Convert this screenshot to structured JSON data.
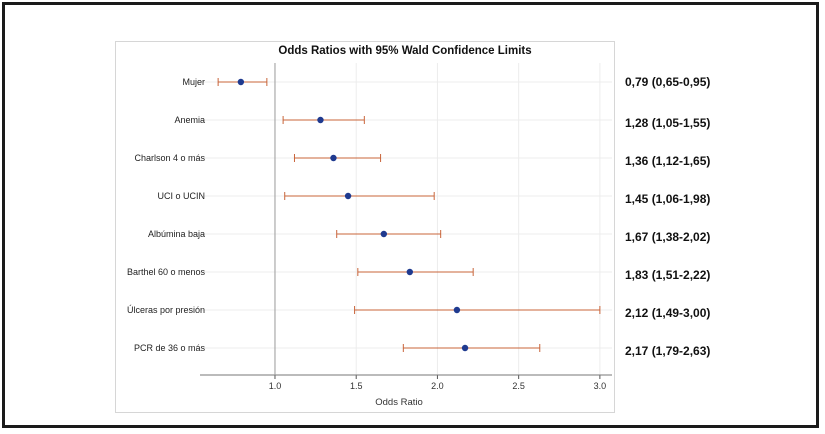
{
  "chart_data": {
    "type": "scatter",
    "title": "Odds Ratios with 95% Wald Confidence Limits",
    "xlabel": "Odds Ratio",
    "ylabel": "",
    "xlim": [
      0.6,
      3.05
    ],
    "xticks": [
      "1.0",
      "1.5",
      "2.0",
      "2.5",
      "3.0"
    ],
    "reference_line": 1.0,
    "grid": true,
    "colors": {
      "point": "#1f3a8f",
      "errorbar": "#c8643a",
      "grid": "#ececec",
      "reference": "#9a9a9a"
    },
    "rows": [
      {
        "label": "Mujer",
        "or": 0.79,
        "lower": 0.65,
        "upper": 0.95,
        "ci_text": "0,79 (0,65-0,95)"
      },
      {
        "label": "Anemia",
        "or": 1.28,
        "lower": 1.05,
        "upper": 1.55,
        "ci_text": "1,28 (1,05-1,55)"
      },
      {
        "label": "Charlson 4 o más",
        "or": 1.36,
        "lower": 1.12,
        "upper": 1.65,
        "ci_text": "1,36 (1,12-1,65)"
      },
      {
        "label": "UCI o UCIN",
        "or": 1.45,
        "lower": 1.06,
        "upper": 1.98,
        "ci_text": "1,45 (1,06-1,98)"
      },
      {
        "label": "Albúmina baja",
        "or": 1.67,
        "lower": 1.38,
        "upper": 2.02,
        "ci_text": "1,67 (1,38-2,02)"
      },
      {
        "label": "Barthel 60 o menos",
        "or": 1.83,
        "lower": 1.51,
        "upper": 2.22,
        "ci_text": "1,83 (1,51-2,22)"
      },
      {
        "label": "Úlceras por presión",
        "or": 2.12,
        "lower": 1.49,
        "upper": 3.0,
        "ci_text": "2,12 (1,49-3,00)"
      },
      {
        "label": "PCR de 36 o más",
        "or": 2.17,
        "lower": 1.79,
        "upper": 2.63,
        "ci_text": "2,17 (1,79-2,63)"
      }
    ]
  }
}
